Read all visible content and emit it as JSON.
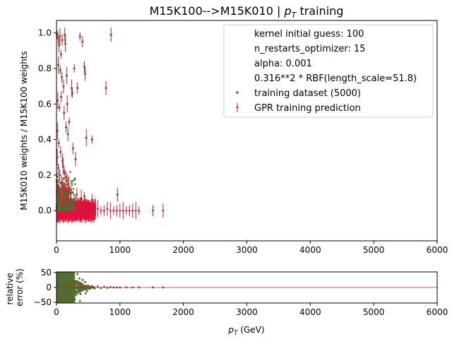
{
  "chart_data": [
    {
      "type": "scatter",
      "title_prefix": "M15K100-->M15K010 | ",
      "title_math_base": "p",
      "title_math_sub": "T",
      "title_suffix": " training",
      "xlabel": "",
      "ylabel": "M15K010 weights / M15K100 weights",
      "xlim": [
        0,
        6000
      ],
      "ylim": [
        -0.17,
        1.07
      ],
      "xticks": [
        0,
        1000,
        2000,
        3000,
        4000,
        5000,
        6000
      ],
      "yticks": [
        0.0,
        0.2,
        0.4,
        0.6,
        0.8,
        1.0
      ],
      "xtick_labels": [
        "0",
        "1000",
        "2000",
        "3000",
        "4000",
        "5000",
        "6000"
      ],
      "ytick_labels": [
        "0.0",
        "0.2",
        "0.4",
        "0.6",
        "0.8",
        "1.0"
      ],
      "legend_position": "top-right",
      "legend_text": [
        "kernel initial guess: 100",
        "n_restarts_optimizer: 15",
        "alpha: 0.001",
        "0.316**2 * RBF(length_scale=51.8)"
      ],
      "series": [
        {
          "name": "training dataset (5000)",
          "color": "#556b2f",
          "points": [
            [
              10,
              0.99
            ],
            [
              25,
              0.97
            ],
            [
              40,
              0.93
            ],
            [
              55,
              0.98
            ],
            [
              70,
              0.88
            ],
            [
              90,
              0.96
            ],
            [
              130,
              0.99
            ],
            [
              140,
              0.94
            ],
            [
              370,
              0.98
            ],
            [
              410,
              0.95
            ],
            [
              860,
              0.99
            ],
            [
              30,
              0.82
            ],
            [
              60,
              0.79
            ],
            [
              85,
              0.75
            ],
            [
              110,
              0.7
            ],
            [
              160,
              0.76
            ],
            [
              280,
              0.8
            ],
            [
              440,
              0.81
            ],
            [
              450,
              0.77
            ],
            [
              240,
              0.69
            ],
            [
              250,
              0.66
            ],
            [
              330,
              0.69
            ],
            [
              780,
              0.69
            ],
            [
              20,
              0.62
            ],
            [
              45,
              0.58
            ],
            [
              75,
              0.64
            ],
            [
              120,
              0.55
            ],
            [
              170,
              0.6
            ],
            [
              200,
              0.5
            ],
            [
              150,
              0.47
            ],
            [
              180,
              0.43
            ],
            [
              470,
              0.41
            ],
            [
              560,
              0.4
            ],
            [
              260,
              0.35
            ],
            [
              300,
              0.29
            ],
            [
              15,
              0.45
            ],
            [
              35,
              0.38
            ],
            [
              65,
              0.33
            ],
            [
              95,
              0.28
            ],
            [
              105,
              0.25
            ],
            [
              125,
              0.22
            ],
            [
              145,
              0.19
            ],
            [
              165,
              0.17
            ],
            [
              190,
              0.15
            ],
            [
              210,
              0.12
            ],
            [
              230,
              0.1
            ],
            [
              320,
              0.09
            ],
            [
              390,
              0.07
            ],
            [
              440,
              0.08
            ],
            [
              560,
              0.06
            ],
            [
              960,
              0.09
            ],
            [
              12,
              0.3
            ],
            [
              28,
              0.24
            ],
            [
              50,
              0.2
            ],
            [
              80,
              0.16
            ],
            [
              100,
              0.14
            ],
            [
              135,
              0.12
            ],
            [
              155,
              0.1
            ],
            [
              175,
              0.08
            ],
            [
              220,
              0.06
            ],
            [
              270,
              0.05
            ],
            [
              340,
              0.04
            ]
          ]
        },
        {
          "name": "GPR training prediction",
          "color": "#dc143c",
          "points": [
            [
              10,
              0.99
            ],
            [
              25,
              0.97
            ],
            [
              40,
              0.93
            ],
            [
              55,
              0.98
            ],
            [
              70,
              0.88
            ],
            [
              90,
              0.96
            ],
            [
              130,
              0.99
            ],
            [
              140,
              0.94
            ],
            [
              370,
              0.98
            ],
            [
              410,
              0.95
            ],
            [
              860,
              0.99
            ],
            [
              30,
              0.82
            ],
            [
              60,
              0.79
            ],
            [
              85,
              0.75
            ],
            [
              110,
              0.7
            ],
            [
              160,
              0.76
            ],
            [
              280,
              0.8
            ],
            [
              440,
              0.81
            ],
            [
              450,
              0.77
            ],
            [
              240,
              0.69
            ],
            [
              250,
              0.66
            ],
            [
              330,
              0.69
            ],
            [
              780,
              0.69
            ],
            [
              20,
              0.62
            ],
            [
              45,
              0.58
            ],
            [
              75,
              0.64
            ],
            [
              120,
              0.55
            ],
            [
              170,
              0.6
            ],
            [
              200,
              0.5
            ],
            [
              150,
              0.47
            ],
            [
              180,
              0.43
            ],
            [
              470,
              0.41
            ],
            [
              560,
              0.4
            ],
            [
              260,
              0.35
            ],
            [
              300,
              0.29
            ],
            [
              15,
              0.45
            ],
            [
              35,
              0.38
            ],
            [
              65,
              0.33
            ],
            [
              95,
              0.28
            ],
            [
              105,
              0.25
            ],
            [
              125,
              0.22
            ],
            [
              145,
              0.19
            ],
            [
              165,
              0.17
            ],
            [
              190,
              0.15
            ],
            [
              210,
              0.12
            ],
            [
              230,
              0.1
            ],
            [
              320,
              0.09
            ],
            [
              390,
              0.07
            ],
            [
              440,
              0.08
            ],
            [
              560,
              0.06
            ],
            [
              960,
              0.09
            ],
            [
              12,
              0.3
            ],
            [
              28,
              0.24
            ],
            [
              50,
              0.2
            ],
            [
              80,
              0.16
            ],
            [
              100,
              0.14
            ],
            [
              135,
              0.12
            ],
            [
              155,
              0.1
            ],
            [
              175,
              0.08
            ],
            [
              220,
              0.06
            ],
            [
              270,
              0.05
            ],
            [
              340,
              0.04
            ],
            [
              600,
              0.0
            ],
            [
              650,
              0.01
            ],
            [
              700,
              0.0
            ],
            [
              750,
              0.0
            ],
            [
              800,
              0.01
            ],
            [
              850,
              0.0
            ],
            [
              900,
              0.0
            ],
            [
              950,
              0.0
            ],
            [
              1000,
              0.0
            ],
            [
              1050,
              0.0
            ],
            [
              1100,
              0.0
            ],
            [
              1150,
              0.0
            ],
            [
              1200,
              0.0
            ],
            [
              1250,
              0.0
            ],
            [
              1300,
              0.0
            ],
            [
              1520,
              0.0
            ],
            [
              1680,
              0.0
            ]
          ]
        }
      ]
    },
    {
      "type": "scatter",
      "xlabel_base": "p",
      "xlabel_sub": "T",
      "xlabel_suffix": " (GeV)",
      "ylabel_lines": [
        "relative",
        "error (%)"
      ],
      "xlim": [
        0,
        6000
      ],
      "ylim": [
        -52,
        52
      ],
      "xticks": [
        0,
        1000,
        2000,
        3000,
        4000,
        5000,
        6000
      ],
      "yticks": [
        -50,
        0,
        50
      ],
      "xtick_labels": [
        "0",
        "1000",
        "2000",
        "3000",
        "4000",
        "5000",
        "6000"
      ],
      "ytick_labels": [
        "−50",
        "0",
        "50"
      ],
      "reference_line": 0,
      "series": [
        {
          "color": "#556b2f",
          "points": [
            [
              310,
              20
            ],
            [
              340,
              -15
            ],
            [
              360,
              30
            ],
            [
              380,
              -22
            ],
            [
              400,
              12
            ],
            [
              420,
              -8
            ],
            [
              450,
              18
            ],
            [
              480,
              -12
            ],
            [
              500,
              6
            ],
            [
              520,
              -5
            ],
            [
              560,
              4
            ],
            [
              600,
              -3
            ],
            [
              650,
              3
            ],
            [
              700,
              -2
            ],
            [
              750,
              2
            ],
            [
              800,
              -1
            ],
            [
              850,
              1
            ],
            [
              900,
              0
            ],
            [
              950,
              0
            ],
            [
              1000,
              0
            ],
            [
              1100,
              0
            ],
            [
              1200,
              0
            ],
            [
              1300,
              0
            ],
            [
              1520,
              0
            ],
            [
              1680,
              0
            ],
            [
              270,
              40
            ],
            [
              290,
              -40
            ],
            [
              330,
              45
            ],
            [
              370,
              -45
            ],
            [
              410,
              25
            ],
            [
              460,
              -20
            ]
          ]
        }
      ]
    }
  ]
}
